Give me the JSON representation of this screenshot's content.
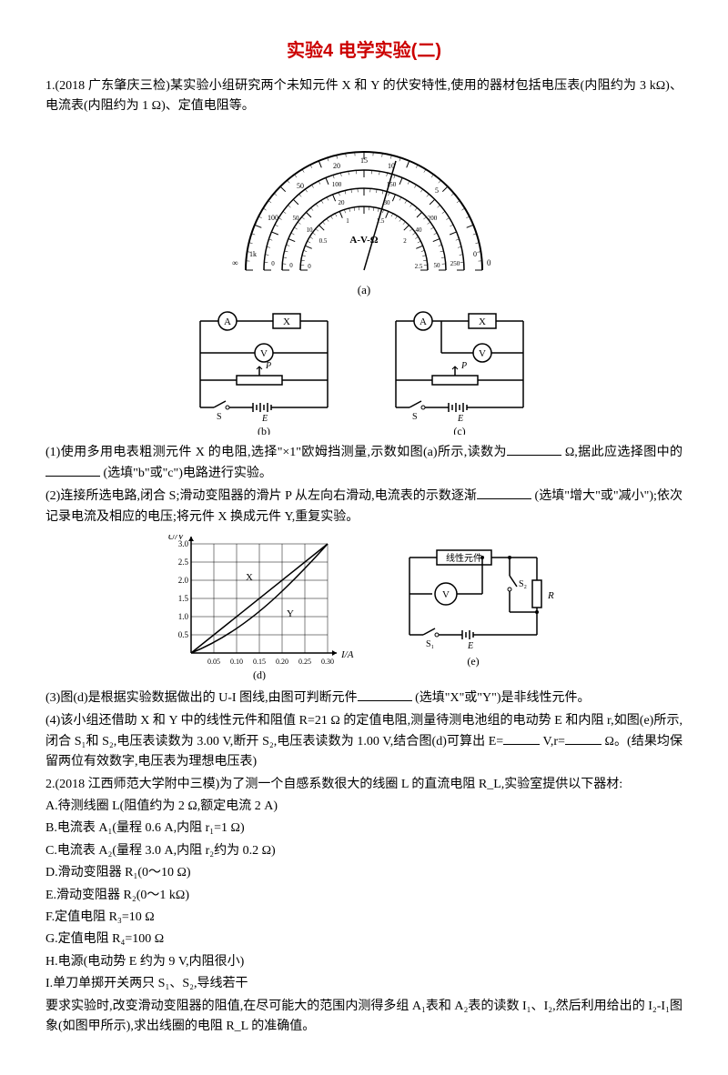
{
  "title": "实验4  电学实验(二)",
  "q1": {
    "intro": "1.(2018 广东肇庆三检)某实验小组研究两个未知元件 X 和 Y 的伏安特性,使用的器材包括电压表(内阻约为 3 kΩ)、电流表(内阻约为 1 Ω)、定值电阻等。",
    "p1a": "(1)使用多用电表粗测元件 X 的电阻,选择\"×1\"欧姆挡测量,示数如图(a)所示,读数为",
    "p1b": "Ω,据此应选择图中的",
    "p1c": "(选填\"b\"或\"c\")电路进行实验。",
    "p2a": "(2)连接所选电路,闭合 S;滑动变阻器的滑片 P 从左向右滑动,电流表的示数逐渐",
    "p2b": "(选填\"增大\"或\"减小\");依次记录电流及相应的电压;将元件 X 换成元件 Y,重复实验。",
    "p3a": "(3)图(d)是根据实验数据做出的 U-I 图线,由图可判断元件",
    "p3b": "(选填\"X\"或\"Y\")是非线性元件。",
    "p4a": "(4)该小组还借助 X 和 Y 中的线性元件和阻值 R=21 Ω 的定值电阻,测量待测电池组的电动势 E 和内阻 r,如图(e)所示,闭合 S₁和 S₂,电压表读数为 3.00 V,断开 S₂,电压表读数为 1.00 V,结合图(d)可算出 E=",
    "p4b": " V,r=",
    "p4c": "Ω。(结果均保留两位有效数字,电压表为理想电压表)"
  },
  "fig_a": {
    "label": "(a)",
    "scale_label": "A-V-Ω",
    "top_scale": [
      "1k",
      "100",
      "50",
      "20",
      "15",
      "10",
      "5",
      "0"
    ],
    "mid_scale": [
      "0",
      "50",
      "100",
      "150",
      "200",
      "250"
    ],
    "bot_scale": [
      "0",
      "10",
      "20",
      "30",
      "40",
      "50"
    ],
    "extra": [
      "0",
      "0.5",
      "1",
      "1.5",
      "2",
      "2.5"
    ],
    "sides": [
      "∞",
      "0"
    ]
  },
  "fig_bc": {
    "label_b": "(b)",
    "label_c": "(c)",
    "symbols": {
      "A": "A",
      "V": "V",
      "X": "X",
      "S": "S",
      "E": "E",
      "P": "P"
    }
  },
  "fig_d": {
    "label": "(d)",
    "ylabel": "U/V",
    "xlabel": "I/A",
    "yticks": [
      "0.5",
      "1.0",
      "1.5",
      "2.0",
      "2.5",
      "3.0"
    ],
    "xticks": [
      "0.05",
      "0.10",
      "0.15",
      "0.20",
      "0.25",
      "0.30"
    ],
    "curve_labels": [
      "X",
      "Y"
    ],
    "line_X": [
      [
        0,
        0
      ],
      [
        0.3,
        3.0
      ]
    ],
    "curve_Y": [
      [
        0,
        0
      ],
      [
        0.05,
        0.25
      ],
      [
        0.1,
        0.6
      ],
      [
        0.15,
        1.1
      ],
      [
        0.2,
        1.7
      ],
      [
        0.25,
        2.3
      ],
      [
        0.3,
        3.0
      ]
    ],
    "grid_color": "#000000",
    "bg": "#ffffff"
  },
  "fig_e": {
    "label": "(e)",
    "box": "线性元件",
    "V": "V",
    "R": "R",
    "S1": "S₁",
    "S2": "S₂",
    "E": "E"
  },
  "q2": {
    "intro": "2.(2018 江西师范大学附中三模)为了测一个自感系数很大的线圈 L 的直流电阻 R_L,实验室提供以下器材:",
    "items": [
      "A.待测线圈 L(阻值约为 2 Ω,额定电流 2 A)",
      "B.电流表 A₁(量程 0.6 A,内阻 r₁=1 Ω)",
      "C.电流表 A₂(量程 3.0 A,内阻 r₂约为 0.2 Ω)",
      "D.滑动变阻器 R₁(0～10 Ω)",
      "E.滑动变阻器 R₂(0～1 kΩ)",
      "F.定值电阻 R₃=10 Ω",
      "G.定值电阻 R₄=100 Ω",
      "H.电源(电动势 E 约为 9 V,内阻很小)",
      "I.单刀单掷开关两只 S₁、S₂,导线若干"
    ],
    "tail": "要求实验时,改变滑动变阻器的阻值,在尽可能大的范围内测得多组 A₁表和 A₂表的读数 I₁、I₂,然后利用给出的 I₂-I₁图象(如图甲所示),求出线圈的电阻 R_L 的准确值。"
  }
}
